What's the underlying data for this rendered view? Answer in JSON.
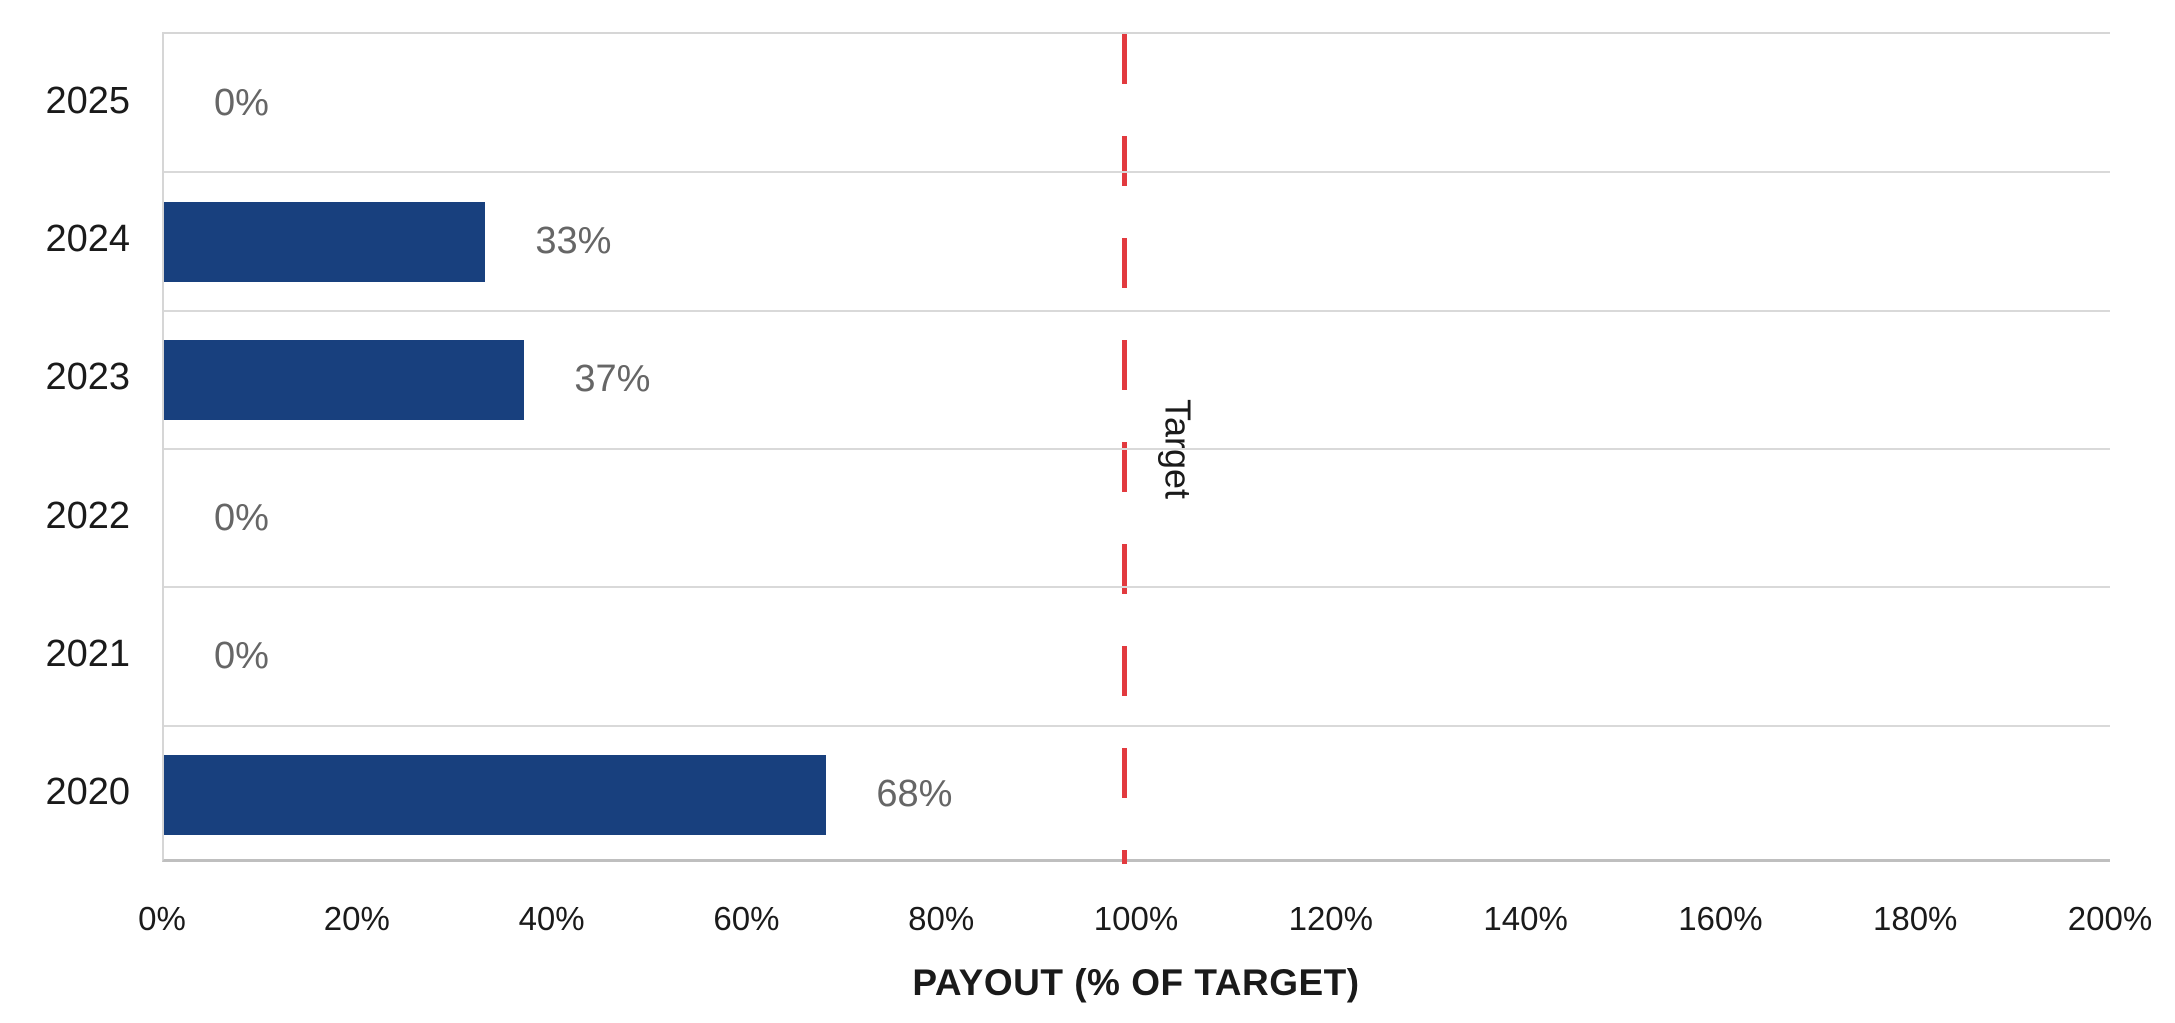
{
  "chart_data": {
    "type": "bar",
    "orientation": "horizontal",
    "title": "",
    "xlabel": "PAYOUT (% OF TARGET)",
    "ylabel": "",
    "categories": [
      "2025",
      "2024",
      "2023",
      "2022",
      "2021",
      "2020"
    ],
    "values": [
      0,
      33,
      37,
      0,
      0,
      68
    ],
    "data_labels": [
      "0%",
      "33%",
      "37%",
      "0%",
      "0%",
      "68%"
    ],
    "x_ticks": [
      "0%",
      "20%",
      "40%",
      "60%",
      "80%",
      "100%",
      "120%",
      "140%",
      "160%",
      "180%",
      "200%"
    ],
    "xlim": [
      0,
      200
    ],
    "grid": "row-separators-only",
    "legend": "none",
    "reference_line": {
      "label": "Target",
      "value": 100,
      "position_pct": 98.6,
      "style": "dashed",
      "color": "#E23A3F"
    },
    "colors": {
      "bar": "#18407E",
      "data_label": "#666666",
      "axis_text": "#1A1A1A",
      "gridline": "#D9D9D9",
      "axis_line": "#BFBFBF",
      "background": "#FFFFFF"
    }
  }
}
